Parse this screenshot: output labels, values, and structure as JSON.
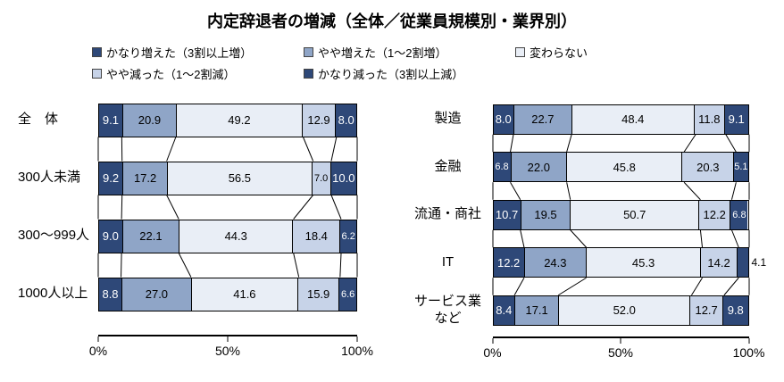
{
  "title": "内定辞退者の増減（全体／従業員規模別・業界別）",
  "legend": {
    "rows": [
      [
        0,
        1,
        2
      ],
      [
        3,
        4
      ]
    ]
  },
  "chart_data": {
    "type": "stacked-bar",
    "orientation": "horizontal",
    "unit": "%",
    "xlim": [
      0,
      100
    ],
    "x_ticks": [
      "0%",
      "50%",
      "100%"
    ],
    "series": [
      {
        "name": "かなり増えた（3割以上増）",
        "color": "#2e4878",
        "text_color": "#ffffff"
      },
      {
        "name": "やや増えた（1～2割増）",
        "color": "#8fa5c7",
        "text_color": "#000000"
      },
      {
        "name": "変わらない",
        "color": "#e9eef6",
        "text_color": "#000000"
      },
      {
        "name": "やや減った（1～2割減）",
        "color": "#c7d3e8",
        "text_color": "#000000"
      },
      {
        "name": "かなり減った（3割以上減）",
        "color": "#2e4878",
        "text_color": "#ffffff"
      }
    ],
    "panels": [
      {
        "categories": [
          "全　体",
          "300人未満",
          "300～999人",
          "1000人以上"
        ],
        "values": [
          [
            9.1,
            20.9,
            49.2,
            12.9,
            8.0
          ],
          [
            9.2,
            17.2,
            56.5,
            7.0,
            10.0
          ],
          [
            9.0,
            22.1,
            44.3,
            18.4,
            6.2
          ],
          [
            8.8,
            27.0,
            41.6,
            15.9,
            6.6
          ]
        ]
      },
      {
        "categories": [
          "製造",
          "金融",
          "流通・商社",
          "IT",
          "サービス業など"
        ],
        "values": [
          [
            8.0,
            22.7,
            48.4,
            11.8,
            9.1
          ],
          [
            6.8,
            22.0,
            45.8,
            20.3,
            5.1
          ],
          [
            10.7,
            19.5,
            50.7,
            12.2,
            6.8
          ],
          [
            12.2,
            24.3,
            45.3,
            14.2,
            4.1
          ],
          [
            8.4,
            17.1,
            52.0,
            12.7,
            9.8
          ]
        ],
        "outside_labels": [
          {
            "row": 3,
            "seg": 4
          }
        ]
      }
    ]
  }
}
